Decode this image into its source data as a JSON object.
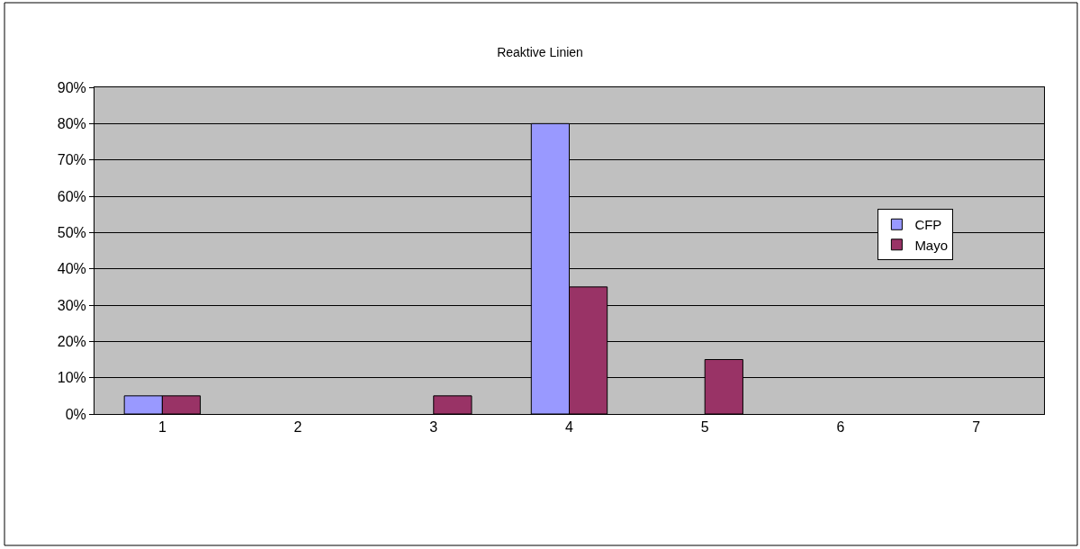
{
  "chart_data": {
    "type": "bar",
    "title": "Reaktive Linien",
    "categories": [
      "1",
      "2",
      "3",
      "4",
      "5",
      "6",
      "7"
    ],
    "series": [
      {
        "name": "CFP",
        "color": "#9999ff",
        "values": [
          5,
          0,
          0,
          80,
          0,
          0,
          0
        ]
      },
      {
        "name": "Mayo",
        "color": "#993366",
        "values": [
          5,
          0,
          5,
          35,
          15,
          0,
          0
        ]
      }
    ],
    "ylim": [
      0,
      90
    ],
    "yticks": [
      {
        "value": 0,
        "label": "0%"
      },
      {
        "value": 10,
        "label": "10%"
      },
      {
        "value": 20,
        "label": "20%"
      },
      {
        "value": 30,
        "label": "30%"
      },
      {
        "value": 40,
        "label": "40%"
      },
      {
        "value": 50,
        "label": "50%"
      },
      {
        "value": 60,
        "label": "60%"
      },
      {
        "value": 70,
        "label": "70%"
      },
      {
        "value": 80,
        "label": "80%"
      },
      {
        "value": 90,
        "label": "90%"
      }
    ],
    "grid": "y",
    "legend": "right"
  }
}
